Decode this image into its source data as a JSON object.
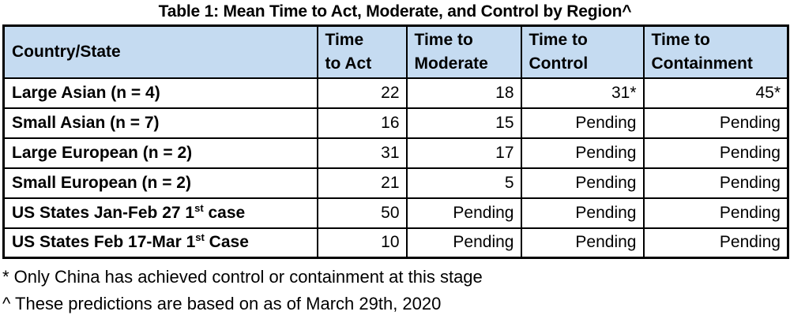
{
  "title": "Table 1: Mean Time to Act, Moderate, and Control by Region^",
  "colors": {
    "header_bg": "#C5DBF1",
    "border": "#000000",
    "text": "#000000"
  },
  "table": {
    "headers": [
      {
        "line1": "Country/State",
        "line2": ""
      },
      {
        "line1": "Time",
        "line2": "to Act"
      },
      {
        "line1": "Time to",
        "line2": "Moderate"
      },
      {
        "line1": "Time to",
        "line2": "Control"
      },
      {
        "line1": "Time to",
        "line2": "Containment"
      }
    ],
    "rows": [
      {
        "label_pre": "Large Asian (n = 4)",
        "label_sup": "",
        "label_post": "",
        "values": [
          "22",
          "18",
          "31*",
          "45*"
        ]
      },
      {
        "label_pre": "Small Asian (n = 7)",
        "label_sup": "",
        "label_post": "",
        "values": [
          "16",
          "15",
          "Pending",
          "Pending"
        ]
      },
      {
        "label_pre": "Large European (n = 2)",
        "label_sup": "",
        "label_post": "",
        "values": [
          "31",
          "17",
          "Pending",
          "Pending"
        ]
      },
      {
        "label_pre": "Small European (n = 2)",
        "label_sup": "",
        "label_post": "",
        "values": [
          "21",
          "5",
          "Pending",
          "Pending"
        ]
      },
      {
        "label_pre": "US States Jan-Feb 27 1",
        "label_sup": "st",
        "label_post": " case",
        "values": [
          "50",
          "Pending",
          "Pending",
          "Pending"
        ]
      },
      {
        "label_pre": "US States Feb 17-Mar 1",
        "label_sup": "st",
        "label_post": " Case",
        "values": [
          "10",
          "Pending",
          "Pending",
          "Pending"
        ]
      }
    ]
  },
  "footnotes": {
    "asterisk": "* Only China has achieved control or containment at this stage",
    "caret": "^ These predictions are based on as of March 29th, 2020"
  },
  "chart_data": {
    "type": "table",
    "title": "Table 1: Mean Time to Act, Moderate, and Control by Region^",
    "columns": [
      "Country/State",
      "Time to Act",
      "Time to Moderate",
      "Time to Control",
      "Time to Containment"
    ],
    "rows": [
      [
        "Large Asian (n = 4)",
        "22",
        "18",
        "31*",
        "45*"
      ],
      [
        "Small Asian (n = 7)",
        "16",
        "15",
        "Pending",
        "Pending"
      ],
      [
        "Large European (n = 2)",
        "31",
        "17",
        "Pending",
        "Pending"
      ],
      [
        "Small European (n = 2)",
        "21",
        "5",
        "Pending",
        "Pending"
      ],
      [
        "US States Jan-Feb 27 1st case",
        "50",
        "Pending",
        "Pending",
        "Pending"
      ],
      [
        "US States Feb 17-Mar 1st Case",
        "10",
        "Pending",
        "Pending",
        "Pending"
      ]
    ],
    "notes": [
      "* Only China has achieved control or containment at this stage",
      "^ These predictions are based on as of March 29th, 2020"
    ]
  }
}
